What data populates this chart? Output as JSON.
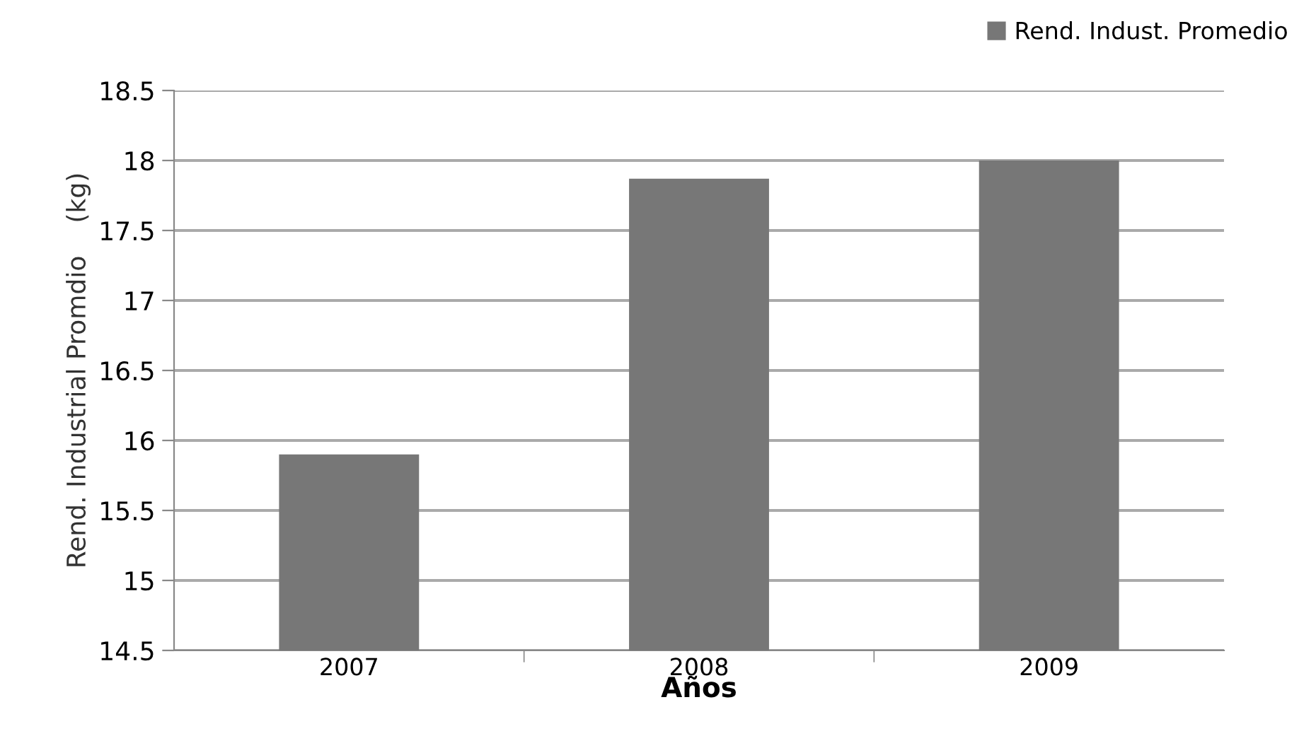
{
  "chart_data": {
    "type": "bar",
    "xlabel": "Años",
    "ylabel": "Rend. Industrial Promdio    (kg)",
    "categories": [
      "2007",
      "2008",
      "2009"
    ],
    "series": [
      {
        "name": "Rend. Indust. Promedio",
        "color": "#777777",
        "values": [
          15.9,
          17.87,
          18.0
        ]
      }
    ],
    "ylim": [
      14.5,
      18.5
    ],
    "yticks": [
      14.5,
      15,
      15.5,
      16,
      16.5,
      17,
      17.5,
      18,
      18.5
    ],
    "grid": "y",
    "legend": "top right"
  }
}
